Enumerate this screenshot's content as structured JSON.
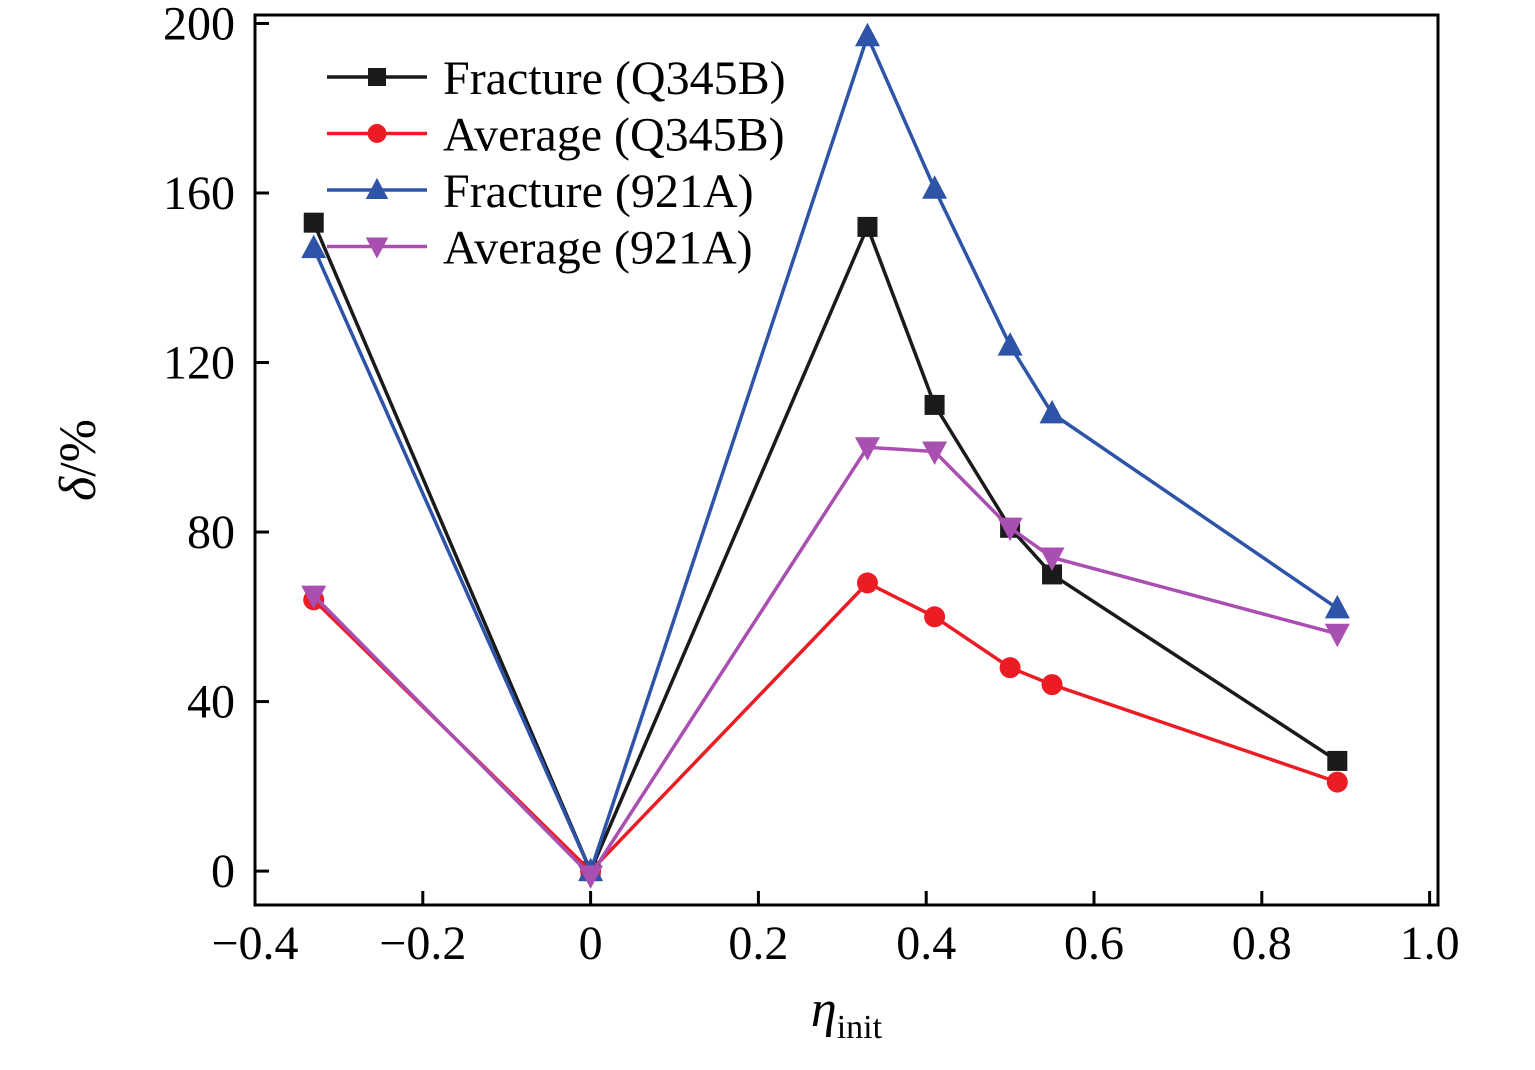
{
  "chart_data": {
    "type": "line",
    "title": "",
    "xlabel": {
      "symbol": "η",
      "subscript": "init"
    },
    "ylabel": {
      "symbol": "δ",
      "rest": "/%"
    },
    "xlim": [
      -0.4,
      1.01
    ],
    "ylim": [
      -8,
      202
    ],
    "xticks": [
      -0.4,
      -0.2,
      0,
      0.2,
      0.4,
      0.6,
      0.8,
      1.0
    ],
    "xtick_labels": [
      "−0.4",
      "−0.2",
      "0",
      "0.2",
      "0.4",
      "0.6",
      "0.8",
      "1.0"
    ],
    "yticks": [
      0,
      40,
      80,
      120,
      160,
      200
    ],
    "ytick_labels": [
      "0",
      "40",
      "80",
      "120",
      "160",
      "200"
    ],
    "grid": false,
    "legend_position": "top-left",
    "series": [
      {
        "name": "Fracture (Q345B)",
        "color": "#1a1a1a",
        "marker": "square",
        "x": [
          -0.33,
          0,
          0.33,
          0.41,
          0.5,
          0.55,
          0.89
        ],
        "y": [
          153,
          0,
          152,
          110,
          81,
          70,
          26
        ]
      },
      {
        "name": "Average (Q345B)",
        "color": "#ec1c24",
        "marker": "circle",
        "x": [
          -0.33,
          0,
          0.33,
          0.41,
          0.5,
          0.55,
          0.89
        ],
        "y": [
          64,
          0,
          68,
          60,
          48,
          44,
          21
        ]
      },
      {
        "name": "Fracture (921A)",
        "color": "#2e54a8",
        "marker": "triangle-up",
        "x": [
          -0.33,
          0,
          0.33,
          0.41,
          0.5,
          0.55,
          0.89
        ],
        "y": [
          147,
          0,
          197,
          161,
          124,
          108,
          62
        ]
      },
      {
        "name": "Average (921A)",
        "color": "#aa4fb2",
        "marker": "triangle-down",
        "x": [
          -0.33,
          0,
          0.33,
          0.41,
          0.5,
          0.55,
          0.89
        ],
        "y": [
          65,
          -1,
          100,
          99,
          81,
          74,
          56
        ]
      }
    ]
  }
}
